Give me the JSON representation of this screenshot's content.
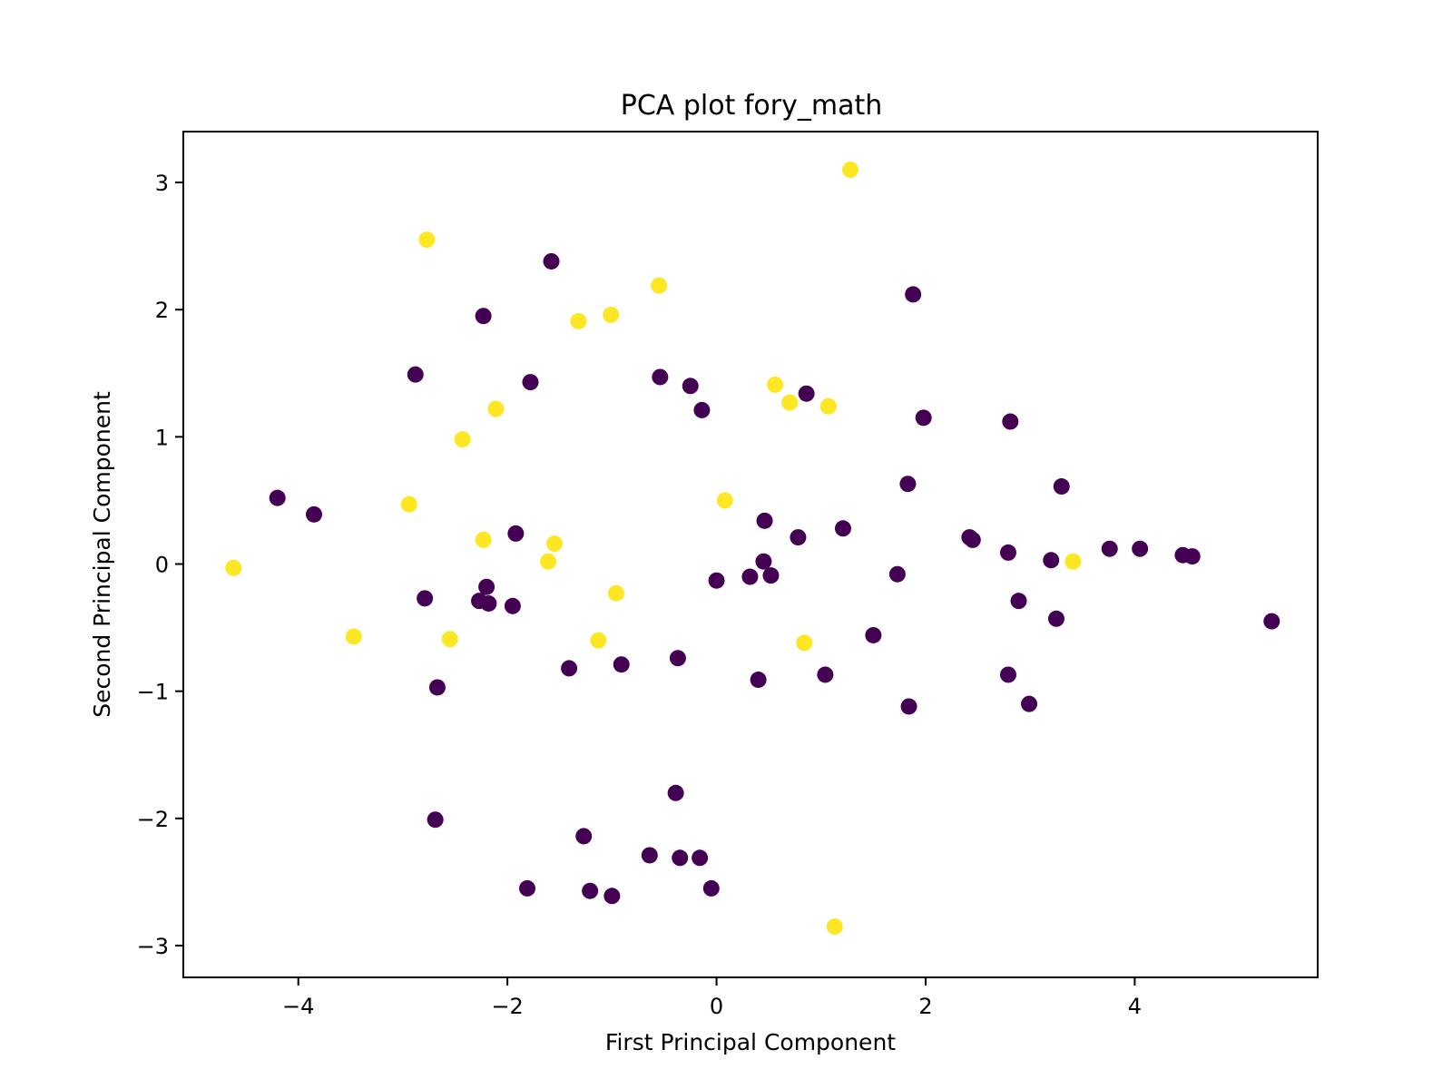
{
  "chart_data": {
    "type": "scatter",
    "title": "PCA plot fory_math",
    "xlabel": "First Principal Component",
    "ylabel": "Second Principal Component",
    "xlim": [
      -5.1,
      5.75
    ],
    "ylim": [
      -3.25,
      3.4
    ],
    "xticks": [
      -4,
      -2,
      0,
      2,
      4
    ],
    "yticks": [
      -3,
      -2,
      -1,
      0,
      1,
      2,
      3
    ],
    "xtick_labels": [
      "−4",
      "−2",
      "0",
      "2",
      "4"
    ],
    "ytick_labels": [
      "−3",
      "−2",
      "−1",
      "0",
      "1",
      "2",
      "3"
    ],
    "grid": false,
    "legend": false,
    "colors": {
      "class_0": "#440154",
      "class_1": "#fde725"
    },
    "series": [
      {
        "class": 0,
        "color": "#440154",
        "points": [
          [
            -1.58,
            2.38
          ],
          [
            -2.23,
            1.95
          ],
          [
            -2.88,
            1.49
          ],
          [
            -1.78,
            1.43
          ],
          [
            -0.54,
            1.47
          ],
          [
            -0.25,
            1.4
          ],
          [
            -0.14,
            1.21
          ],
          [
            0.86,
            1.34
          ],
          [
            1.88,
            2.12
          ],
          [
            1.98,
            1.15
          ],
          [
            2.81,
            1.12
          ],
          [
            1.83,
            0.63
          ],
          [
            3.3,
            0.61
          ],
          [
            -4.2,
            0.52
          ],
          [
            -3.85,
            0.39
          ],
          [
            -1.92,
            0.24
          ],
          [
            0.46,
            0.34
          ],
          [
            0.78,
            0.21
          ],
          [
            1.21,
            0.28
          ],
          [
            2.42,
            0.21
          ],
          [
            2.45,
            0.19
          ],
          [
            2.79,
            0.09
          ],
          [
            3.2,
            0.03
          ],
          [
            3.76,
            0.12
          ],
          [
            4.05,
            0.12
          ],
          [
            4.46,
            0.07
          ],
          [
            4.55,
            0.06
          ],
          [
            0.45,
            0.02
          ],
          [
            0.32,
            -0.1
          ],
          [
            0.52,
            -0.09
          ],
          [
            1.73,
            -0.08
          ],
          [
            0.0,
            -0.13
          ],
          [
            -2.79,
            -0.27
          ],
          [
            -2.2,
            -0.18
          ],
          [
            -2.27,
            -0.29
          ],
          [
            -2.18,
            -0.31
          ],
          [
            -1.95,
            -0.33
          ],
          [
            2.89,
            -0.29
          ],
          [
            3.25,
            -0.43
          ],
          [
            5.31,
            -0.45
          ],
          [
            1.5,
            -0.56
          ],
          [
            -1.41,
            -0.82
          ],
          [
            -0.91,
            -0.79
          ],
          [
            -0.37,
            -0.74
          ],
          [
            -2.67,
            -0.97
          ],
          [
            0.4,
            -0.91
          ],
          [
            1.04,
            -0.87
          ],
          [
            2.79,
            -0.87
          ],
          [
            1.84,
            -1.12
          ],
          [
            2.99,
            -1.1
          ],
          [
            -0.39,
            -1.8
          ],
          [
            -2.69,
            -2.01
          ],
          [
            -1.27,
            -2.14
          ],
          [
            -0.64,
            -2.29
          ],
          [
            -0.35,
            -2.31
          ],
          [
            -0.16,
            -2.31
          ],
          [
            -1.81,
            -2.55
          ],
          [
            -1.21,
            -2.57
          ],
          [
            -1.0,
            -2.61
          ],
          [
            -0.05,
            -2.55
          ]
        ]
      },
      {
        "class": 1,
        "color": "#fde725",
        "points": [
          [
            1.28,
            3.1
          ],
          [
            -2.77,
            2.55
          ],
          [
            -0.55,
            2.19
          ],
          [
            -1.32,
            1.91
          ],
          [
            -1.01,
            1.96
          ],
          [
            0.56,
            1.41
          ],
          [
            0.7,
            1.27
          ],
          [
            1.07,
            1.24
          ],
          [
            -2.11,
            1.22
          ],
          [
            -2.43,
            0.98
          ],
          [
            -2.94,
            0.47
          ],
          [
            0.08,
            0.5
          ],
          [
            -2.23,
            0.19
          ],
          [
            -1.55,
            0.16
          ],
          [
            -1.61,
            0.02
          ],
          [
            3.41,
            0.02
          ],
          [
            -4.62,
            -0.03
          ],
          [
            -0.96,
            -0.23
          ],
          [
            -3.47,
            -0.57
          ],
          [
            -2.55,
            -0.59
          ],
          [
            -1.13,
            -0.6
          ],
          [
            0.84,
            -0.62
          ],
          [
            1.13,
            -2.85
          ]
        ]
      }
    ]
  }
}
